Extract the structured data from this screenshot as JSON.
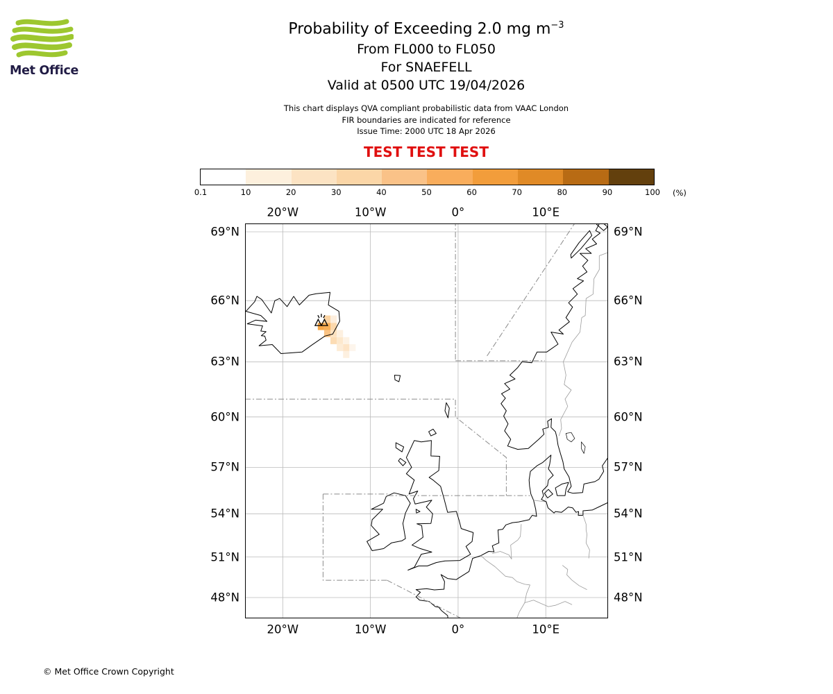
{
  "logo": {
    "brand": "Met Office"
  },
  "colors": {
    "test_red": "#e01010",
    "logo_green": "#9dc72f",
    "logo_navy": "#211c45"
  },
  "header": {
    "title": "Probability of Exceeding 2.0 mg m",
    "title_superscript": "−3",
    "line1": "From FL000 to FL050",
    "line2": "For SNAEFELL",
    "line3": "Valid at 0500 UTC 19/04/2026",
    "note1": "This chart displays QVA compliant probabilistic data from VAAC London",
    "note2": "FIR boundaries are indicated for reference",
    "note3": "Issue Time: 2000 UTC 18 Apr 2026",
    "test_banner": "TEST TEST TEST"
  },
  "colorbar": {
    "tick_labels": [
      "0.1",
      "10",
      "20",
      "30",
      "40",
      "50",
      "60",
      "70",
      "80",
      "90",
      "100"
    ],
    "unit_label": "(%)",
    "segment_colors": [
      "#ffffff",
      "#fdf0dd",
      "#fce3c3",
      "#fbd6a7",
      "#fac288",
      "#f9ad5c",
      "#f29d3b",
      "#e08a26",
      "#b86b14",
      "#63400d"
    ]
  },
  "map": {
    "lon_ticks": [
      {
        "v": -20,
        "label": "20°W"
      },
      {
        "v": -10,
        "label": "10°W"
      },
      {
        "v": 0,
        "label": "0°"
      },
      {
        "v": 10,
        "label": "10°E"
      }
    ],
    "lat_ticks": [
      {
        "v": 69,
        "label": "69°N"
      },
      {
        "v": 66,
        "label": "66°N"
      },
      {
        "v": 63,
        "label": "63°N"
      },
      {
        "v": 60,
        "label": "60°N"
      },
      {
        "v": 57,
        "label": "57°N"
      },
      {
        "v": 54,
        "label": "54°N"
      },
      {
        "v": 51,
        "label": "51°N"
      },
      {
        "v": 48,
        "label": "48°N"
      }
    ],
    "volcano": {
      "name": "SNAEFELL",
      "lon": -15.6,
      "lat": 64.95
    },
    "cell_size": {
      "dlon": 0.72,
      "dlat": 0.35
    },
    "ash_cells": [
      {
        "lon": -15.28,
        "lat": 65.3,
        "color": "#fbd4a4"
      },
      {
        "lon": -14.56,
        "lat": 65.3,
        "color": "#fdeedd"
      },
      {
        "lon": -16.0,
        "lat": 64.95,
        "color": "#f8a848"
      },
      {
        "lon": -15.28,
        "lat": 64.95,
        "color": "#f8b058"
      },
      {
        "lon": -14.56,
        "lat": 64.95,
        "color": "#fcd8ac"
      },
      {
        "lon": -15.28,
        "lat": 64.6,
        "color": "#fac384"
      },
      {
        "lon": -14.56,
        "lat": 64.6,
        "color": "#fde2c0"
      },
      {
        "lon": -13.84,
        "lat": 64.6,
        "color": "#fdf0e0"
      },
      {
        "lon": -14.56,
        "lat": 64.25,
        "color": "#fcdcb4"
      },
      {
        "lon": -13.84,
        "lat": 64.25,
        "color": "#fde8cc"
      },
      {
        "lon": -13.12,
        "lat": 64.25,
        "color": "#fdf2e4"
      },
      {
        "lon": -13.84,
        "lat": 63.9,
        "color": "#fdecd6"
      },
      {
        "lon": -13.12,
        "lat": 63.9,
        "color": "#fde4c6"
      },
      {
        "lon": -12.4,
        "lat": 63.9,
        "color": "#fdf5ec"
      },
      {
        "lon": -13.12,
        "lat": 63.55,
        "color": "#fdf0e0"
      }
    ]
  },
  "footer": {
    "copyright": "© Met Office Crown Copyright"
  }
}
